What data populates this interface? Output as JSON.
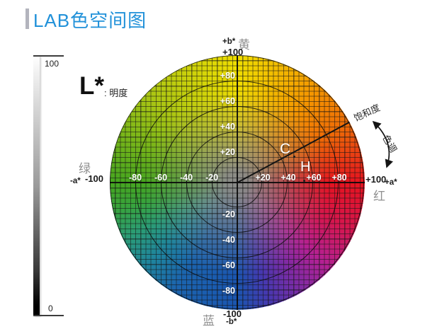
{
  "title": {
    "text": "LAB色空间图",
    "accent_color": "#2191d9",
    "bar_color": "#b3b4bd"
  },
  "lightness_scale": {
    "symbol": "L*",
    "caption": ": 明度",
    "top_value": "100",
    "bottom_value": "0"
  },
  "wheel": {
    "unit_scale": 1.8,
    "rings": [
      20,
      40,
      60,
      80,
      100
    ],
    "h_ticks": [
      {
        "v": -80,
        "t": "-80"
      },
      {
        "v": -60,
        "t": "-60"
      },
      {
        "v": -40,
        "t": "-40"
      },
      {
        "v": -20,
        "t": "-20"
      },
      {
        "v": 20,
        "t": "+20"
      },
      {
        "v": 40,
        "t": "+40"
      },
      {
        "v": 60,
        "t": "+60"
      },
      {
        "v": 80,
        "t": "+80"
      }
    ],
    "v_ticks": [
      {
        "v": 80,
        "t": "+80"
      },
      {
        "v": 60,
        "t": "+60"
      },
      {
        "v": 40,
        "t": "+40"
      },
      {
        "v": 20,
        "t": "+20"
      },
      {
        "v": -20,
        "t": "-20"
      },
      {
        "v": -40,
        "t": "-40"
      },
      {
        "v": -60,
        "t": "-60"
      },
      {
        "v": -80,
        "t": "-80"
      }
    ],
    "top": {
      "axis": "+b*",
      "color_name": "黄",
      "value": "+100"
    },
    "bottom": {
      "value": "-100",
      "axis": "-b*",
      "color_name": "蓝"
    },
    "left": {
      "color_name": "绿",
      "axis": "-a*",
      "value": "-100"
    },
    "right": {
      "value": "+100",
      "axis": "+a*",
      "color_name": "红"
    },
    "chroma_label": "C",
    "hue_label": "H",
    "center_color": "#8a8a88",
    "hue_stops": [
      {
        "angle": 0,
        "color": "#f0de00"
      },
      {
        "angle": 40,
        "color": "#f59600"
      },
      {
        "angle": 62,
        "color": "#ee6c06"
      },
      {
        "angle": 90,
        "color": "#e6131f"
      },
      {
        "angle": 112,
        "color": "#d6164e"
      },
      {
        "angle": 133,
        "color": "#b52093"
      },
      {
        "angle": 150,
        "color": "#7c2ba6"
      },
      {
        "angle": 165,
        "color": "#4638b0"
      },
      {
        "angle": 180,
        "color": "#1a55b0"
      },
      {
        "angle": 210,
        "color": "#1b64ae"
      },
      {
        "angle": 228,
        "color": "#1f859d"
      },
      {
        "angle": 244,
        "color": "#2b9c74"
      },
      {
        "angle": 258,
        "color": "#38a43c"
      },
      {
        "angle": 270,
        "color": "#46a51f"
      },
      {
        "angle": 315,
        "color": "#abc613"
      },
      {
        "angle": 360,
        "color": "#f0de00"
      }
    ]
  },
  "annotations": {
    "saturation": "饱和度",
    "hue": "色调"
  }
}
